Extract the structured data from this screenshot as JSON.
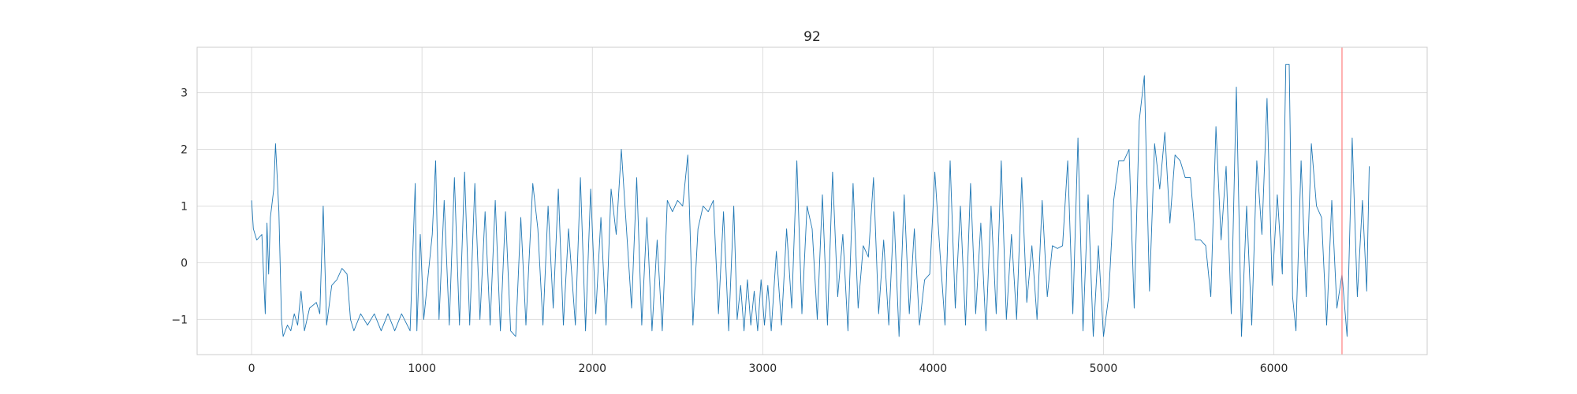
{
  "chart_data": {
    "type": "line",
    "title": "92",
    "xlabel": "",
    "ylabel": "",
    "xlim": [
      -320,
      6900
    ],
    "ylim": [
      -1.62,
      3.8
    ],
    "xticks": [
      0,
      1000,
      2000,
      3000,
      4000,
      5000,
      6000
    ],
    "xtick_labels": [
      "0",
      "1000",
      "2000",
      "3000",
      "4000",
      "5000",
      "6000"
    ],
    "yticks": [
      -1,
      0,
      1,
      2,
      3
    ],
    "ytick_labels": [
      "−1",
      "0",
      "1",
      "2",
      "3"
    ],
    "grid": true,
    "legend": "none",
    "series": [
      {
        "color": "#1f77b4",
        "x_start": 0,
        "x_end": 6560,
        "points": [
          [
            0,
            1.1
          ],
          [
            10,
            0.6
          ],
          [
            30,
            0.4
          ],
          [
            60,
            0.5
          ],
          [
            80,
            -0.9
          ],
          [
            90,
            0.7
          ],
          [
            100,
            -0.2
          ],
          [
            110,
            0.8
          ],
          [
            130,
            1.3
          ],
          [
            140,
            2.1
          ],
          [
            150,
            1.5
          ],
          [
            160,
            0.9
          ],
          [
            175,
            -1.0
          ],
          [
            185,
            -1.3
          ],
          [
            210,
            -1.1
          ],
          [
            230,
            -1.2
          ],
          [
            250,
            -0.9
          ],
          [
            270,
            -1.1
          ],
          [
            290,
            -0.5
          ],
          [
            310,
            -1.2
          ],
          [
            340,
            -0.8
          ],
          [
            380,
            -0.7
          ],
          [
            400,
            -0.9
          ],
          [
            420,
            1.0
          ],
          [
            440,
            -1.1
          ],
          [
            470,
            -0.4
          ],
          [
            500,
            -0.3
          ],
          [
            530,
            -0.1
          ],
          [
            560,
            -0.2
          ],
          [
            580,
            -1.0
          ],
          [
            600,
            -1.2
          ],
          [
            640,
            -0.9
          ],
          [
            680,
            -1.1
          ],
          [
            720,
            -0.9
          ],
          [
            760,
            -1.2
          ],
          [
            800,
            -0.9
          ],
          [
            840,
            -1.2
          ],
          [
            880,
            -0.9
          ],
          [
            930,
            -1.2
          ],
          [
            960,
            1.4
          ],
          [
            970,
            -1.2
          ],
          [
            990,
            0.5
          ],
          [
            1010,
            -1.0
          ],
          [
            1030,
            -0.4
          ],
          [
            1060,
            0.5
          ],
          [
            1080,
            1.8
          ],
          [
            1100,
            -1.0
          ],
          [
            1130,
            1.1
          ],
          [
            1160,
            -1.1
          ],
          [
            1190,
            1.5
          ],
          [
            1220,
            -1.1
          ],
          [
            1250,
            1.6
          ],
          [
            1280,
            -1.1
          ],
          [
            1310,
            1.4
          ],
          [
            1340,
            -1.0
          ],
          [
            1370,
            0.9
          ],
          [
            1400,
            -1.1
          ],
          [
            1430,
            1.1
          ],
          [
            1460,
            -1.2
          ],
          [
            1490,
            0.9
          ],
          [
            1520,
            -1.2
          ],
          [
            1550,
            -1.3
          ],
          [
            1580,
            0.8
          ],
          [
            1610,
            -1.1
          ],
          [
            1650,
            1.4
          ],
          [
            1680,
            0.6
          ],
          [
            1710,
            -1.1
          ],
          [
            1740,
            1.0
          ],
          [
            1770,
            -0.8
          ],
          [
            1800,
            1.3
          ],
          [
            1830,
            -1.1
          ],
          [
            1860,
            0.6
          ],
          [
            1900,
            -1.1
          ],
          [
            1930,
            1.5
          ],
          [
            1960,
            -1.2
          ],
          [
            1990,
            1.3
          ],
          [
            2020,
            -0.9
          ],
          [
            2050,
            0.8
          ],
          [
            2080,
            -1.1
          ],
          [
            2110,
            1.3
          ],
          [
            2140,
            0.5
          ],
          [
            2170,
            2.0
          ],
          [
            2200,
            0.6
          ],
          [
            2230,
            -0.8
          ],
          [
            2260,
            1.5
          ],
          [
            2290,
            -1.1
          ],
          [
            2320,
            0.8
          ],
          [
            2350,
            -1.2
          ],
          [
            2380,
            0.4
          ],
          [
            2410,
            -1.2
          ],
          [
            2440,
            1.1
          ],
          [
            2470,
            0.9
          ],
          [
            2500,
            1.1
          ],
          [
            2530,
            1.0
          ],
          [
            2560,
            1.9
          ],
          [
            2590,
            -1.1
          ],
          [
            2620,
            0.6
          ],
          [
            2650,
            1.0
          ],
          [
            2680,
            0.9
          ],
          [
            2710,
            1.1
          ],
          [
            2740,
            -0.9
          ],
          [
            2770,
            0.9
          ],
          [
            2800,
            -1.2
          ],
          [
            2830,
            1.0
          ],
          [
            2850,
            -1.0
          ],
          [
            2870,
            -0.4
          ],
          [
            2890,
            -1.2
          ],
          [
            2910,
            -0.3
          ],
          [
            2930,
            -1.1
          ],
          [
            2950,
            -0.5
          ],
          [
            2970,
            -1.2
          ],
          [
            2990,
            -0.3
          ],
          [
            3010,
            -1.1
          ],
          [
            3030,
            -0.4
          ],
          [
            3050,
            -1.2
          ],
          [
            3080,
            0.2
          ],
          [
            3110,
            -1.1
          ],
          [
            3140,
            0.6
          ],
          [
            3170,
            -0.8
          ],
          [
            3200,
            1.8
          ],
          [
            3230,
            -0.9
          ],
          [
            3260,
            1.0
          ],
          [
            3290,
            0.6
          ],
          [
            3320,
            -1.0
          ],
          [
            3350,
            1.2
          ],
          [
            3380,
            -1.1
          ],
          [
            3410,
            1.6
          ],
          [
            3440,
            -0.6
          ],
          [
            3470,
            0.5
          ],
          [
            3500,
            -1.2
          ],
          [
            3530,
            1.4
          ],
          [
            3560,
            -0.8
          ],
          [
            3590,
            0.3
          ],
          [
            3620,
            0.1
          ],
          [
            3650,
            1.5
          ],
          [
            3680,
            -0.9
          ],
          [
            3710,
            0.4
          ],
          [
            3740,
            -1.1
          ],
          [
            3770,
            0.9
          ],
          [
            3800,
            -1.3
          ],
          [
            3830,
            1.2
          ],
          [
            3860,
            -0.9
          ],
          [
            3890,
            0.6
          ],
          [
            3920,
            -1.1
          ],
          [
            3950,
            -0.3
          ],
          [
            3980,
            -0.2
          ],
          [
            4010,
            1.6
          ],
          [
            4040,
            0.2
          ],
          [
            4070,
            -1.1
          ],
          [
            4100,
            1.8
          ],
          [
            4130,
            -0.8
          ],
          [
            4160,
            1.0
          ],
          [
            4190,
            -1.1
          ],
          [
            4220,
            1.4
          ],
          [
            4250,
            -0.9
          ],
          [
            4280,
            0.7
          ],
          [
            4310,
            -1.2
          ],
          [
            4340,
            1.0
          ],
          [
            4370,
            -0.9
          ],
          [
            4400,
            1.8
          ],
          [
            4430,
            -1.0
          ],
          [
            4460,
            0.5
          ],
          [
            4490,
            -1.0
          ],
          [
            4520,
            1.5
          ],
          [
            4550,
            -0.7
          ],
          [
            4580,
            0.3
          ],
          [
            4610,
            -1.0
          ],
          [
            4640,
            1.1
          ],
          [
            4670,
            -0.6
          ],
          [
            4700,
            0.3
          ],
          [
            4730,
            0.25
          ],
          [
            4760,
            0.3
          ],
          [
            4790,
            1.8
          ],
          [
            4820,
            -0.9
          ],
          [
            4850,
            2.2
          ],
          [
            4880,
            -1.2
          ],
          [
            4910,
            1.2
          ],
          [
            4940,
            -1.3
          ],
          [
            4970,
            0.3
          ],
          [
            5000,
            -1.3
          ],
          [
            5030,
            -0.6
          ],
          [
            5060,
            1.1
          ],
          [
            5090,
            1.8
          ],
          [
            5120,
            1.8
          ],
          [
            5150,
            2.0
          ],
          [
            5180,
            -0.8
          ],
          [
            5210,
            2.5
          ],
          [
            5240,
            3.3
          ],
          [
            5270,
            -0.5
          ],
          [
            5300,
            2.1
          ],
          [
            5330,
            1.3
          ],
          [
            5360,
            2.3
          ],
          [
            5390,
            0.7
          ],
          [
            5420,
            1.9
          ],
          [
            5450,
            1.8
          ],
          [
            5480,
            1.5
          ],
          [
            5510,
            1.5
          ],
          [
            5540,
            0.4
          ],
          [
            5570,
            0.4
          ],
          [
            5600,
            0.3
          ],
          [
            5630,
            -0.6
          ],
          [
            5660,
            2.4
          ],
          [
            5690,
            0.4
          ],
          [
            5720,
            1.7
          ],
          [
            5750,
            -0.9
          ],
          [
            5780,
            3.1
          ],
          [
            5810,
            -1.3
          ],
          [
            5840,
            1.0
          ],
          [
            5870,
            -1.1
          ],
          [
            5900,
            1.8
          ],
          [
            5930,
            0.5
          ],
          [
            5960,
            2.9
          ],
          [
            5990,
            -0.4
          ],
          [
            6020,
            1.2
          ],
          [
            6050,
            -0.2
          ],
          [
            6070,
            3.5
          ],
          [
            6090,
            3.5
          ],
          [
            6110,
            -0.6
          ],
          [
            6130,
            -1.2
          ],
          [
            6160,
            1.8
          ],
          [
            6190,
            -0.6
          ],
          [
            6220,
            2.1
          ],
          [
            6250,
            1.0
          ],
          [
            6280,
            0.8
          ],
          [
            6310,
            -1.1
          ],
          [
            6340,
            1.1
          ],
          [
            6370,
            -0.8
          ],
          [
            6400,
            -0.2
          ],
          [
            6430,
            -1.3
          ],
          [
            6460,
            2.2
          ],
          [
            6490,
            -0.6
          ],
          [
            6520,
            1.1
          ],
          [
            6545,
            -0.5
          ],
          [
            6560,
            1.7
          ]
        ]
      }
    ],
    "vline": {
      "x": 6400,
      "color": "#ff7f7f"
    }
  }
}
